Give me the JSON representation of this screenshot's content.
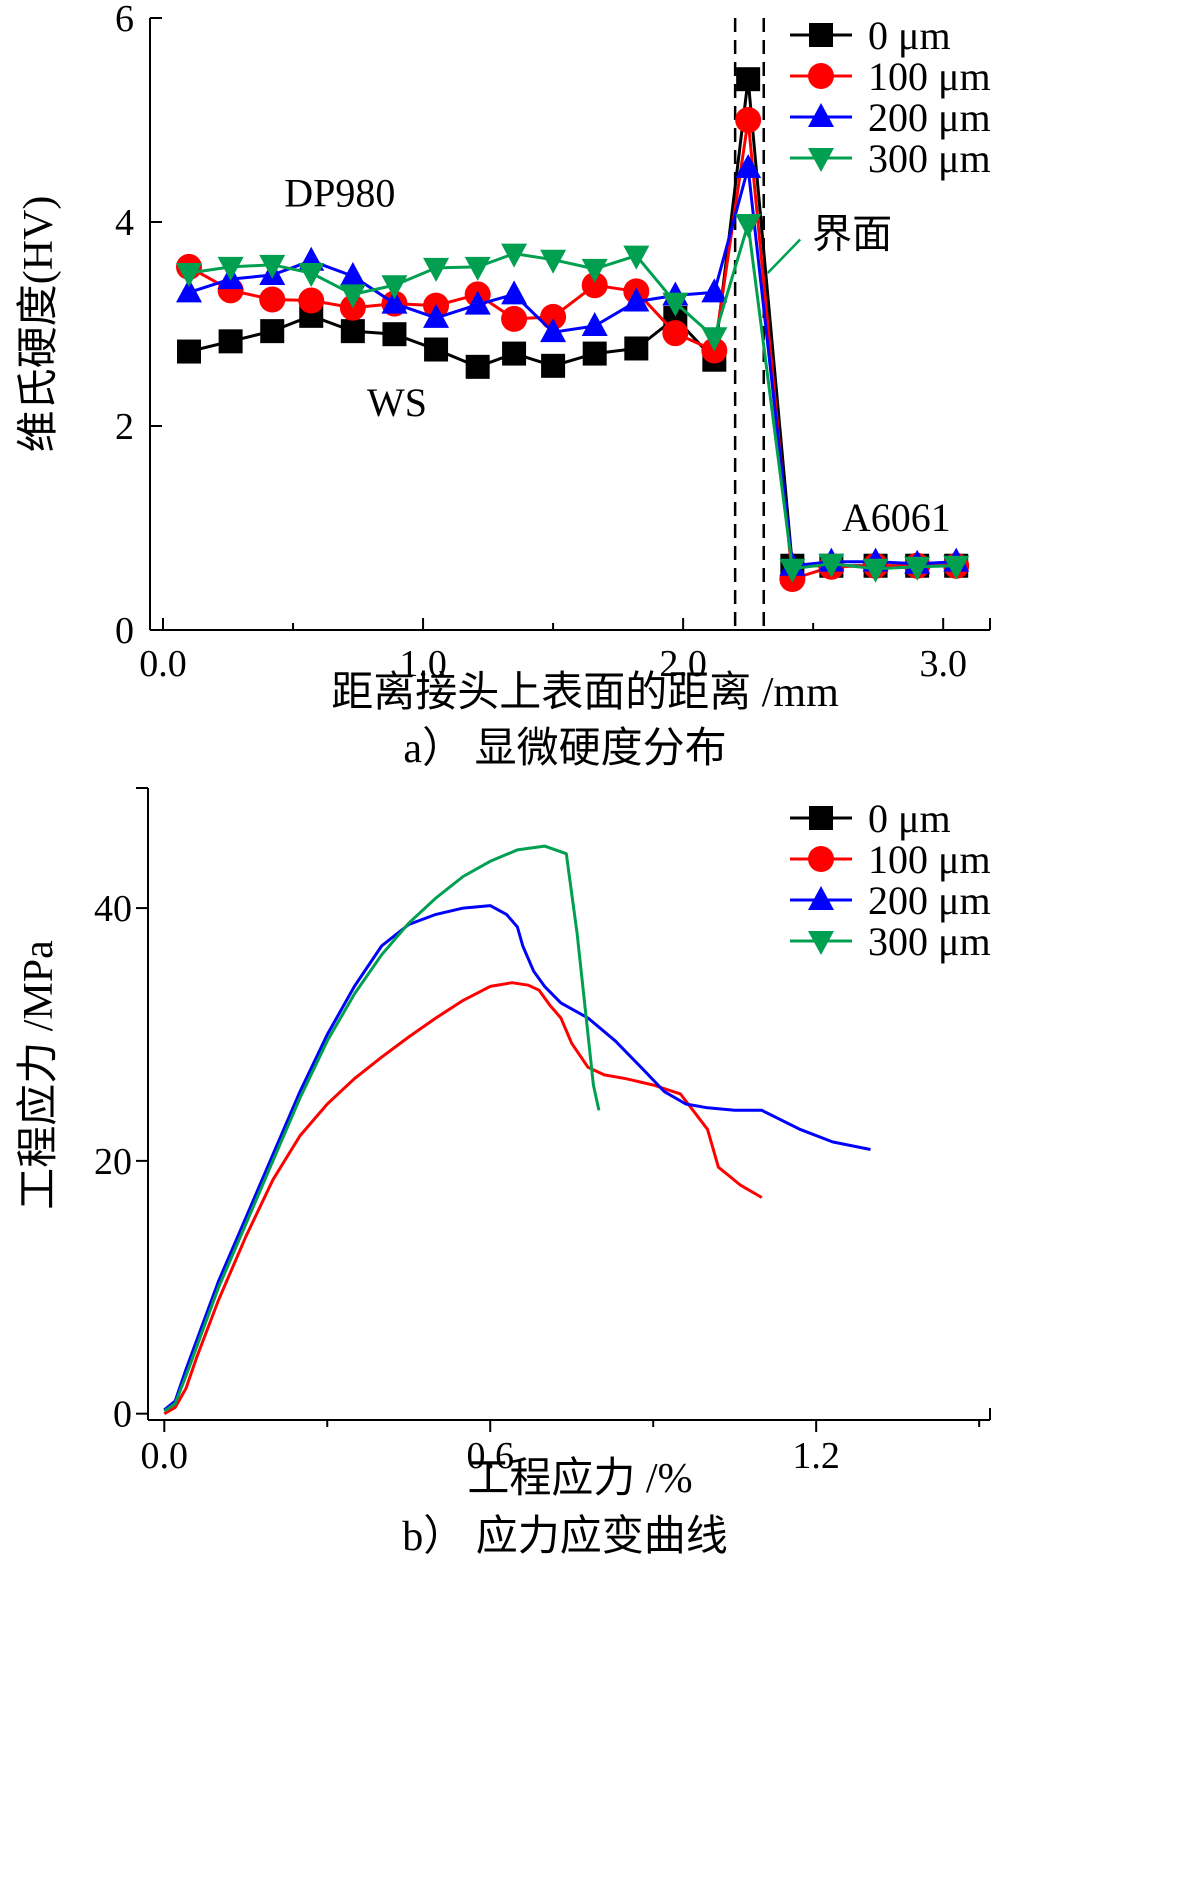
{
  "chart_data": [
    {
      "type": "line",
      "id": "a",
      "caption": "a） 显微硬度分布",
      "xlabel": "距离接头上表面的距离 /mm",
      "ylabel": "维氏硬度(HV)",
      "xlim": [
        -0.05,
        3.18
      ],
      "ylim": [
        0,
        6
      ],
      "xticks": [
        0.0,
        1.0,
        2.0,
        3.0
      ],
      "xtick_labels": [
        "0.0",
        "1.0",
        "2.0",
        "3.0"
      ],
      "yticks": [
        0,
        2,
        4,
        6
      ],
      "ytick_labels": [
        "0",
        "2",
        "4",
        "6"
      ],
      "interface_lines": [
        2.2,
        2.31
      ],
      "annotations": [
        {
          "text": "DP980",
          "x": 0.68,
          "y": 4.15
        },
        {
          "text": "WS",
          "x": 0.9,
          "y": 2.1
        },
        {
          "text": "A6061",
          "x": 2.82,
          "y": 0.97
        },
        {
          "text": "界面",
          "x": 2.65,
          "y": 3.75,
          "arrow_to": [
            2.31,
            3.5
          ]
        }
      ],
      "series": [
        {
          "name": "0 μm",
          "color": "#000000",
          "marker": "square",
          "x": [
            0.1,
            0.26,
            0.42,
            0.57,
            0.73,
            0.89,
            1.05,
            1.21,
            1.35,
            1.5,
            1.66,
            1.82,
            1.97,
            2.12,
            2.25,
            2.42,
            2.57,
            2.74,
            2.9,
            3.05
          ],
          "y": [
            2.73,
            2.83,
            2.93,
            3.08,
            2.93,
            2.9,
            2.75,
            2.58,
            2.71,
            2.59,
            2.71,
            2.76,
            3.06,
            2.65,
            5.4,
            0.63,
            0.63,
            0.63,
            0.63,
            0.63
          ]
        },
        {
          "name": "100 μm",
          "color": "#ff0000",
          "marker": "circle",
          "x": [
            0.1,
            0.26,
            0.42,
            0.57,
            0.73,
            0.89,
            1.05,
            1.21,
            1.35,
            1.5,
            1.66,
            1.82,
            1.97,
            2.12,
            2.25,
            2.42,
            2.57,
            2.74,
            2.9,
            3.05
          ],
          "y": [
            3.56,
            3.33,
            3.24,
            3.23,
            3.16,
            3.2,
            3.18,
            3.29,
            3.05,
            3.07,
            3.38,
            3.32,
            2.91,
            2.74,
            5.0,
            0.5,
            0.62,
            0.63,
            0.63,
            0.63
          ]
        },
        {
          "name": "200 μm",
          "color": "#0000ff",
          "marker": "triangle-up",
          "x": [
            0.1,
            0.26,
            0.42,
            0.57,
            0.73,
            0.89,
            1.05,
            1.21,
            1.35,
            1.5,
            1.66,
            1.82,
            1.97,
            2.12,
            2.25,
            2.42,
            2.57,
            2.74,
            2.9,
            3.05
          ],
          "y": [
            3.31,
            3.44,
            3.48,
            3.62,
            3.47,
            3.2,
            3.06,
            3.19,
            3.29,
            2.92,
            2.98,
            3.22,
            3.28,
            3.31,
            4.53,
            0.63,
            0.67,
            0.67,
            0.65,
            0.67
          ]
        },
        {
          "name": "300 μm",
          "color": "#00a050",
          "marker": "triangle-down",
          "x": [
            0.1,
            0.26,
            0.42,
            0.57,
            0.73,
            0.89,
            1.05,
            1.21,
            1.35,
            1.5,
            1.66,
            1.82,
            1.97,
            2.12,
            2.25,
            2.42,
            2.57,
            2.74,
            2.9,
            3.05
          ],
          "y": [
            3.5,
            3.56,
            3.58,
            3.5,
            3.29,
            3.38,
            3.55,
            3.56,
            3.69,
            3.63,
            3.54,
            3.67,
            3.21,
            2.87,
            3.98,
            0.6,
            0.65,
            0.6,
            0.62,
            0.63
          ]
        }
      ]
    },
    {
      "type": "line",
      "id": "b",
      "caption": "b） 应力应变曲线",
      "xlabel": "工程应力 /%",
      "ylabel": "工程应力 /MPa",
      "xlim": [
        -0.03,
        1.52
      ],
      "ylim": [
        -0.5,
        49.5
      ],
      "xticks": [
        0.0,
        0.6,
        1.2
      ],
      "xtick_labels": [
        "0.0",
        "0.6",
        "1.2"
      ],
      "yticks": [
        0,
        20,
        40
      ],
      "ytick_labels": [
        "0",
        "20",
        "40"
      ],
      "series": [
        {
          "name": "0 μm",
          "color": "#000000",
          "marker": "square",
          "x": [],
          "y": []
        },
        {
          "name": "100 μm",
          "color": "#ff0000",
          "marker": "circle",
          "x": [
            0.0,
            0.02,
            0.04,
            0.06,
            0.1,
            0.15,
            0.2,
            0.25,
            0.3,
            0.35,
            0.4,
            0.45,
            0.5,
            0.55,
            0.6,
            0.64,
            0.67,
            0.69,
            0.71,
            0.73,
            0.75,
            0.78,
            0.81,
            0.85,
            0.9,
            0.95,
            1.0,
            1.02,
            1.04,
            1.06,
            1.1
          ],
          "y": [
            0.0,
            0.5,
            2.0,
            4.5,
            9.0,
            14.0,
            18.5,
            22.0,
            24.5,
            26.5,
            28.2,
            29.8,
            31.3,
            32.7,
            33.8,
            34.1,
            33.9,
            33.5,
            32.3,
            31.3,
            29.3,
            27.4,
            26.8,
            26.5,
            26.0,
            25.3,
            22.5,
            19.5,
            18.8,
            18.1,
            17.1
          ]
        },
        {
          "name": "200 μm",
          "color": "#0000ff",
          "marker": "triangle-up",
          "x": [
            0.0,
            0.02,
            0.04,
            0.07,
            0.1,
            0.15,
            0.2,
            0.25,
            0.3,
            0.35,
            0.4,
            0.45,
            0.5,
            0.55,
            0.6,
            0.63,
            0.65,
            0.66,
            0.68,
            0.7,
            0.73,
            0.78,
            0.83,
            0.88,
            0.92,
            0.96,
            1.0,
            1.05,
            1.1,
            1.17,
            1.23,
            1.3
          ],
          "y": [
            0.3,
            1.0,
            3.5,
            7.0,
            10.5,
            15.5,
            20.5,
            25.5,
            30.0,
            33.8,
            37.0,
            38.7,
            39.5,
            40.0,
            40.2,
            39.5,
            38.5,
            37.0,
            35.0,
            33.8,
            32.5,
            31.3,
            29.5,
            27.3,
            25.5,
            24.5,
            24.2,
            24.0,
            24.0,
            22.5,
            21.5,
            20.9
          ]
        },
        {
          "name": "300 μm",
          "color": "#00a050",
          "marker": "triangle-down",
          "x": [
            0.0,
            0.02,
            0.04,
            0.07,
            0.1,
            0.15,
            0.2,
            0.25,
            0.3,
            0.35,
            0.4,
            0.45,
            0.5,
            0.55,
            0.6,
            0.65,
            0.7,
            0.74,
            0.76,
            0.78,
            0.79,
            0.8
          ],
          "y": [
            0.2,
            0.8,
            3.0,
            6.5,
            10.0,
            15.0,
            20.0,
            25.0,
            29.5,
            33.2,
            36.3,
            38.8,
            40.8,
            42.5,
            43.7,
            44.6,
            44.9,
            44.3,
            38.0,
            30.0,
            26.0,
            24.0
          ]
        }
      ]
    }
  ]
}
